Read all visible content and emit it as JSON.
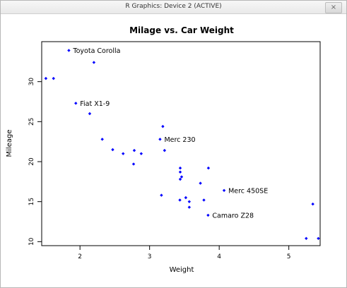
{
  "window": {
    "title": "R Graphics: Device 2 (ACTIVE)",
    "close_label": "×"
  },
  "colors": {
    "point": "#0000ff",
    "axis": "#000000",
    "background": "#ffffff"
  },
  "chart_data": {
    "type": "scatter",
    "title": "Milage vs. Car Weight",
    "xlabel": "Weight",
    "ylabel": "Mileage",
    "xlim": [
      1.45,
      5.45
    ],
    "ylim": [
      9.5,
      35.0
    ],
    "xticks": [
      2,
      3,
      4,
      5
    ],
    "yticks": [
      10,
      15,
      20,
      25,
      30
    ],
    "grid": false,
    "legend": "none",
    "points": [
      {
        "x": 1.51,
        "y": 30.4
      },
      {
        "x": 1.62,
        "y": 30.4
      },
      {
        "x": 1.84,
        "y": 33.9,
        "label": "Toyota Corolla"
      },
      {
        "x": 1.94,
        "y": 27.3,
        "label": "Fiat X1-9"
      },
      {
        "x": 2.14,
        "y": 26.0
      },
      {
        "x": 2.2,
        "y": 32.4
      },
      {
        "x": 2.32,
        "y": 22.8
      },
      {
        "x": 2.47,
        "y": 21.5
      },
      {
        "x": 2.62,
        "y": 21.0
      },
      {
        "x": 2.77,
        "y": 19.7
      },
      {
        "x": 2.78,
        "y": 21.4
      },
      {
        "x": 2.88,
        "y": 21.0
      },
      {
        "x": 3.15,
        "y": 22.8,
        "label": "Merc 230"
      },
      {
        "x": 3.17,
        "y": 15.8
      },
      {
        "x": 3.19,
        "y": 24.4
      },
      {
        "x": 3.215,
        "y": 21.4
      },
      {
        "x": 3.435,
        "y": 15.2
      },
      {
        "x": 3.44,
        "y": 18.7
      },
      {
        "x": 3.44,
        "y": 19.2
      },
      {
        "x": 3.44,
        "y": 17.8
      },
      {
        "x": 3.46,
        "y": 18.1
      },
      {
        "x": 3.52,
        "y": 15.5
      },
      {
        "x": 3.57,
        "y": 14.3
      },
      {
        "x": 3.57,
        "y": 15.0
      },
      {
        "x": 3.73,
        "y": 17.3
      },
      {
        "x": 3.78,
        "y": 15.2
      },
      {
        "x": 3.84,
        "y": 13.3,
        "label": "Camaro Z28"
      },
      {
        "x": 3.845,
        "y": 19.2
      },
      {
        "x": 4.07,
        "y": 16.4,
        "label": "Merc 450SE"
      },
      {
        "x": 5.25,
        "y": 10.4
      },
      {
        "x": 5.345,
        "y": 14.7
      },
      {
        "x": 5.424,
        "y": 10.4
      }
    ]
  }
}
